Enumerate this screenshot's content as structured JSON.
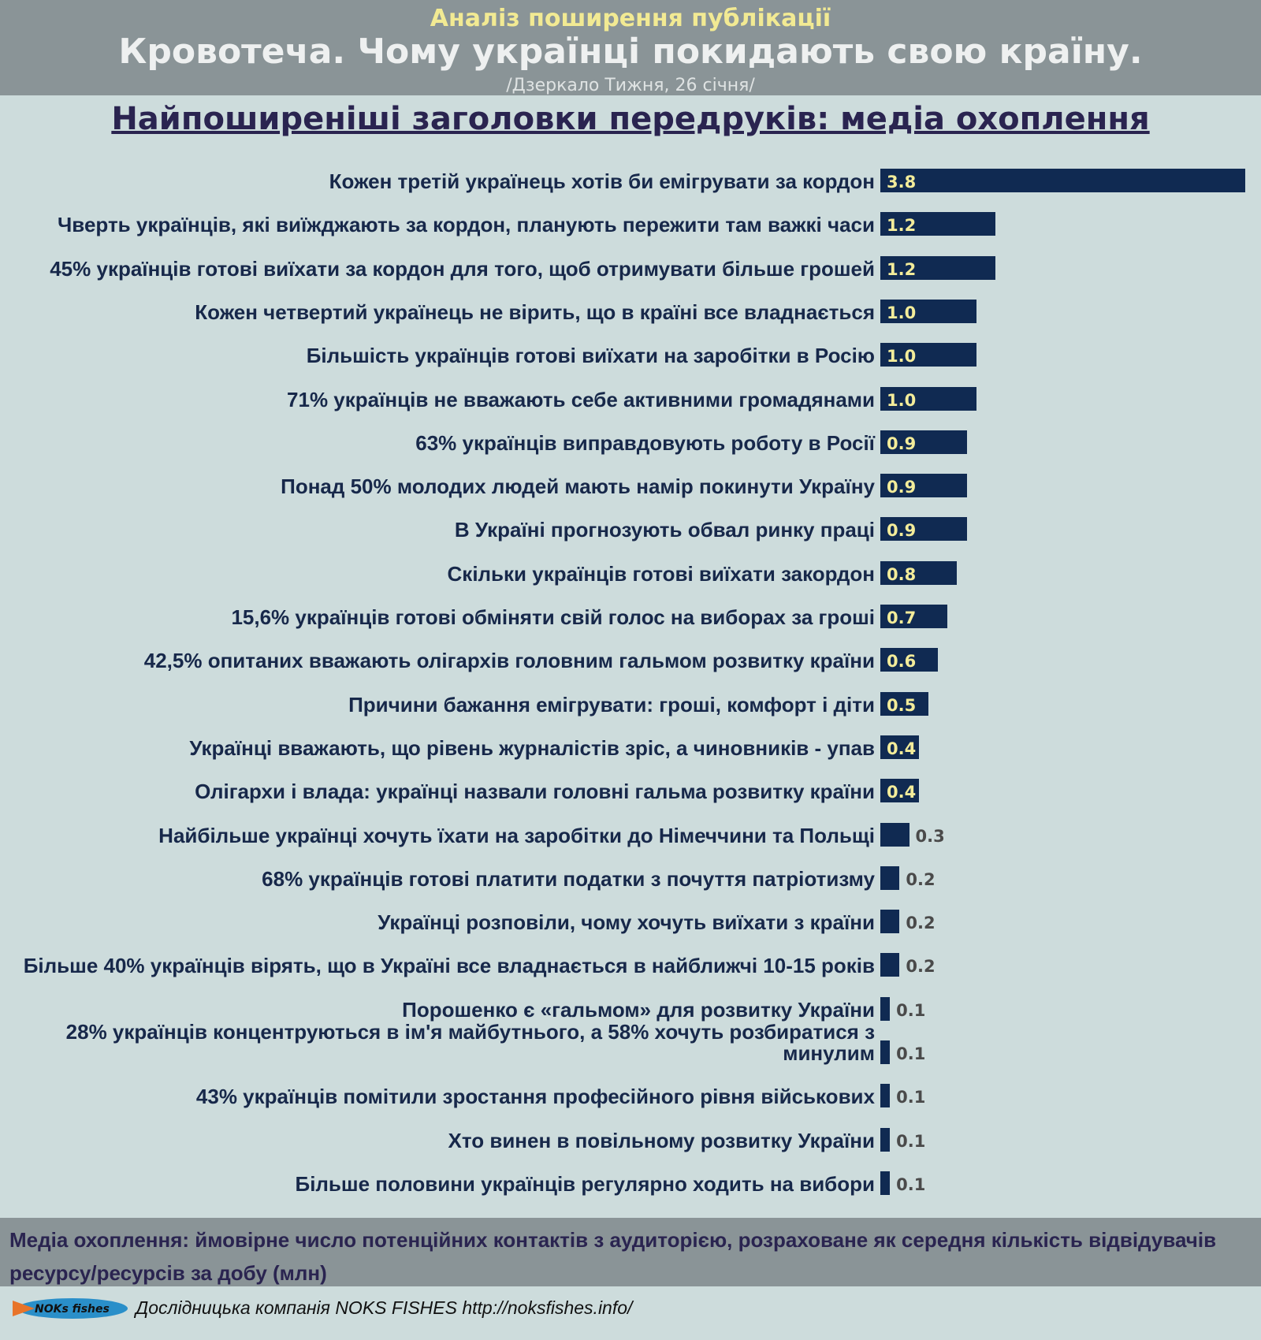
{
  "header": {
    "kicker": "Аналіз поширення публікації",
    "title": "Кровотеча. Чому українці покидають свою країну.",
    "source": "/Дзеркало Тижня, 26 січня/"
  },
  "chart_data": {
    "type": "bar",
    "orientation": "horizontal",
    "title": "Найпоширеніші заголовки передруків: медіа охоплення",
    "categories": [
      "Кожен третій українець хотів би емігрувати за кордон",
      "Чверть українців, які виїжджають за кордон, планують пережити там важкі часи",
      "45% українців готові виїхати за кордон для того, щоб отримувати більше грошей",
      "Кожен четвертий українець не вірить, що в країні все владнається",
      "Більшість українців готові виїхати на заробітки в Росію",
      "71% українців не вважають себе активними громадянами",
      "63% українців виправдовують роботу в Росії",
      "Понад 50% молодих людей мають намір покинути Україну",
      "В Україні прогнозують обвал ринку праці",
      "Скільки українців готові виїхати закордон",
      "15,6% українців готові обміняти свій голос на виборах за гроші",
      "42,5% опитаних вважають олігархів головним гальмом розвитку країни",
      "Причини бажання емігрувати: гроші, комфорт і діти",
      "Українці вважають, що рівень журналістів зріс, а чиновників - упав",
      "Олігархи і влада: українці назвали головні гальма розвитку країни",
      "Найбільше українці хочуть їхати на заробітки до Німеччини та Польщі",
      "68% українців готові платити податки з почуття патріотизму",
      "Українці розповіли, чому хочуть виїхати з країни",
      "Більше 40% українців вірять, що в Україні все владнається в найближчі 10-15 років",
      "Порошенко є «гальмом» для розвитку України",
      "28% українців концентруються в ім'я майбутнього, а 58% хочуть розбиратися з минулим",
      "43% українців помітили зростання професійного рівня військових",
      "Хто винен в повільному розвитку України",
      "Більше половини українців регулярно ходить на вибори"
    ],
    "values": [
      3.8,
      1.2,
      1.2,
      1.0,
      1.0,
      1.0,
      0.9,
      0.9,
      0.9,
      0.8,
      0.7,
      0.6,
      0.5,
      0.4,
      0.4,
      0.3,
      0.2,
      0.2,
      0.2,
      0.1,
      0.1,
      0.1,
      0.1,
      0.1
    ],
    "value_labels": [
      "3.8",
      "1.2",
      "1.2",
      "1.0",
      "1.0",
      "1.0",
      "0.9",
      "0.9",
      "0.9",
      "0.8",
      "0.7",
      "0.6",
      "0.5",
      "0.4",
      "0.4",
      "0.3",
      "0.2",
      "0.2",
      "0.2",
      "0.1",
      "0.1",
      "0.1",
      "0.1",
      "0.1"
    ],
    "color": "#102a52",
    "label_color_inside": "#f3ec9a",
    "label_color_outside": "#4a4a4a"
  },
  "footer": {
    "note": "Медіа охоплення: ймовірне число потенційних контактів з аудиторією, розраховане як середня кількість відвідувачів ресурсу/ресурсів за добу (млн)",
    "logo_text": "NOKs fishes",
    "credit": "Дослідницька компанія NOKS FISHES http://noksfishes.info/"
  }
}
